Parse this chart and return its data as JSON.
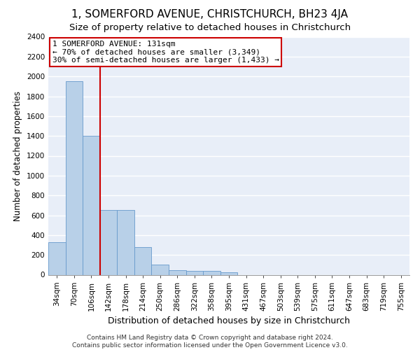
{
  "title1": "1, SOMERFORD AVENUE, CHRISTCHURCH, BH23 4JA",
  "title2": "Size of property relative to detached houses in Christchurch",
  "xlabel": "Distribution of detached houses by size in Christchurch",
  "ylabel": "Number of detached properties",
  "bar_labels": [
    "34sqm",
    "70sqm",
    "106sqm",
    "142sqm",
    "178sqm",
    "214sqm",
    "250sqm",
    "286sqm",
    "322sqm",
    "358sqm",
    "395sqm",
    "431sqm",
    "467sqm",
    "503sqm",
    "539sqm",
    "575sqm",
    "611sqm",
    "647sqm",
    "683sqm",
    "719sqm",
    "755sqm"
  ],
  "bar_values": [
    325,
    1950,
    1400,
    650,
    650,
    280,
    105,
    48,
    38,
    38,
    22,
    0,
    0,
    0,
    0,
    0,
    0,
    0,
    0,
    0,
    0
  ],
  "bar_color": "#b8d0e8",
  "bar_edge_color": "#6699cc",
  "vline_x": 3.0,
  "vline_color": "#cc0000",
  "annotation_text": "1 SOMERFORD AVENUE: 131sqm\n← 70% of detached houses are smaller (3,349)\n30% of semi-detached houses are larger (1,433) →",
  "annotation_box_facecolor": "#ffffff",
  "annotation_box_edgecolor": "#cc0000",
  "ylim": [
    0,
    2400
  ],
  "yticks": [
    0,
    200,
    400,
    600,
    800,
    1000,
    1200,
    1400,
    1600,
    1800,
    2000,
    2200,
    2400
  ],
  "background_color": "#e8eef8",
  "grid_color": "#ffffff",
  "footer": "Contains HM Land Registry data © Crown copyright and database right 2024.\nContains public sector information licensed under the Open Government Licence v3.0.",
  "title1_fontsize": 11,
  "title2_fontsize": 9.5,
  "xlabel_fontsize": 9,
  "ylabel_fontsize": 8.5,
  "tick_fontsize": 7.5,
  "annotation_fontsize": 8,
  "footer_fontsize": 6.5
}
